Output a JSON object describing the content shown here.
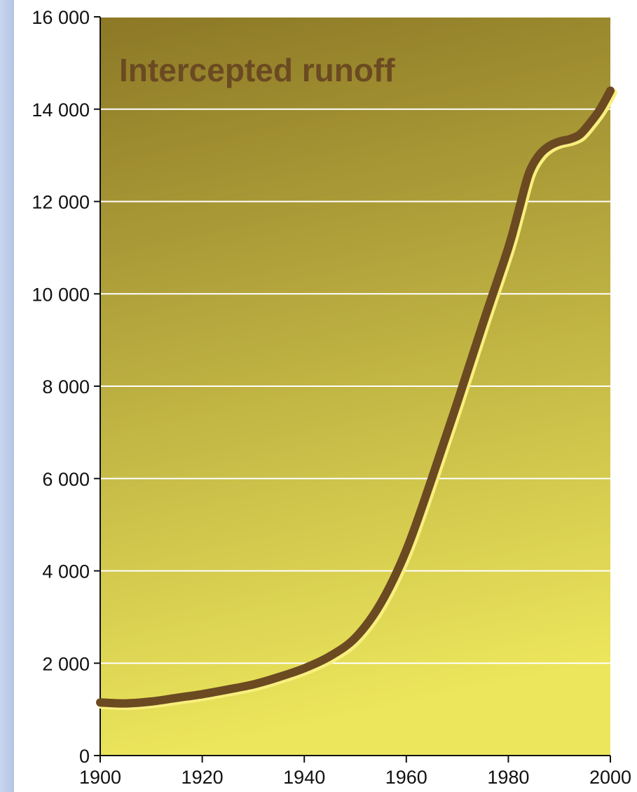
{
  "chart_data": {
    "type": "line",
    "title": "Intercepted runoff",
    "xlabel": "",
    "ylabel": "",
    "xlim": [
      1900,
      2000
    ],
    "ylim": [
      0,
      16000
    ],
    "x_ticks": [
      1900,
      1920,
      1940,
      1960,
      1980,
      2000
    ],
    "x_tick_labels": [
      "1900",
      "1920",
      "1940",
      "1960",
      "1980",
      "2000"
    ],
    "y_ticks": [
      0,
      2000,
      4000,
      6000,
      8000,
      10000,
      12000,
      14000,
      16000
    ],
    "y_tick_labels": [
      "0",
      "2 000",
      "4 000",
      "6 000",
      "8 000",
      "10 000",
      "12 000",
      "14 000",
      "16 000"
    ],
    "grid": true,
    "series": [
      {
        "x": [
          1900,
          1905,
          1910,
          1915,
          1920,
          1925,
          1930,
          1935,
          1940,
          1945,
          1950,
          1955,
          1960,
          1965,
          1970,
          1975,
          1980,
          1982,
          1984,
          1986,
          1988,
          1990,
          1992,
          1994,
          1996,
          1998,
          2000
        ],
        "values": [
          1150,
          1130,
          1170,
          1250,
          1330,
          1430,
          1540,
          1700,
          1890,
          2150,
          2550,
          3300,
          4450,
          6000,
          7650,
          9350,
          11000,
          11800,
          12600,
          13000,
          13200,
          13300,
          13350,
          13450,
          13700,
          14000,
          14400
        ],
        "color": "#6b4a22"
      }
    ],
    "colors": {
      "plot_top": "#8c7826",
      "plot_bottom": "#ece65c",
      "grid": "#ffffff",
      "title": "#6b4a22",
      "line_highlight": "#f8ef7e"
    }
  }
}
